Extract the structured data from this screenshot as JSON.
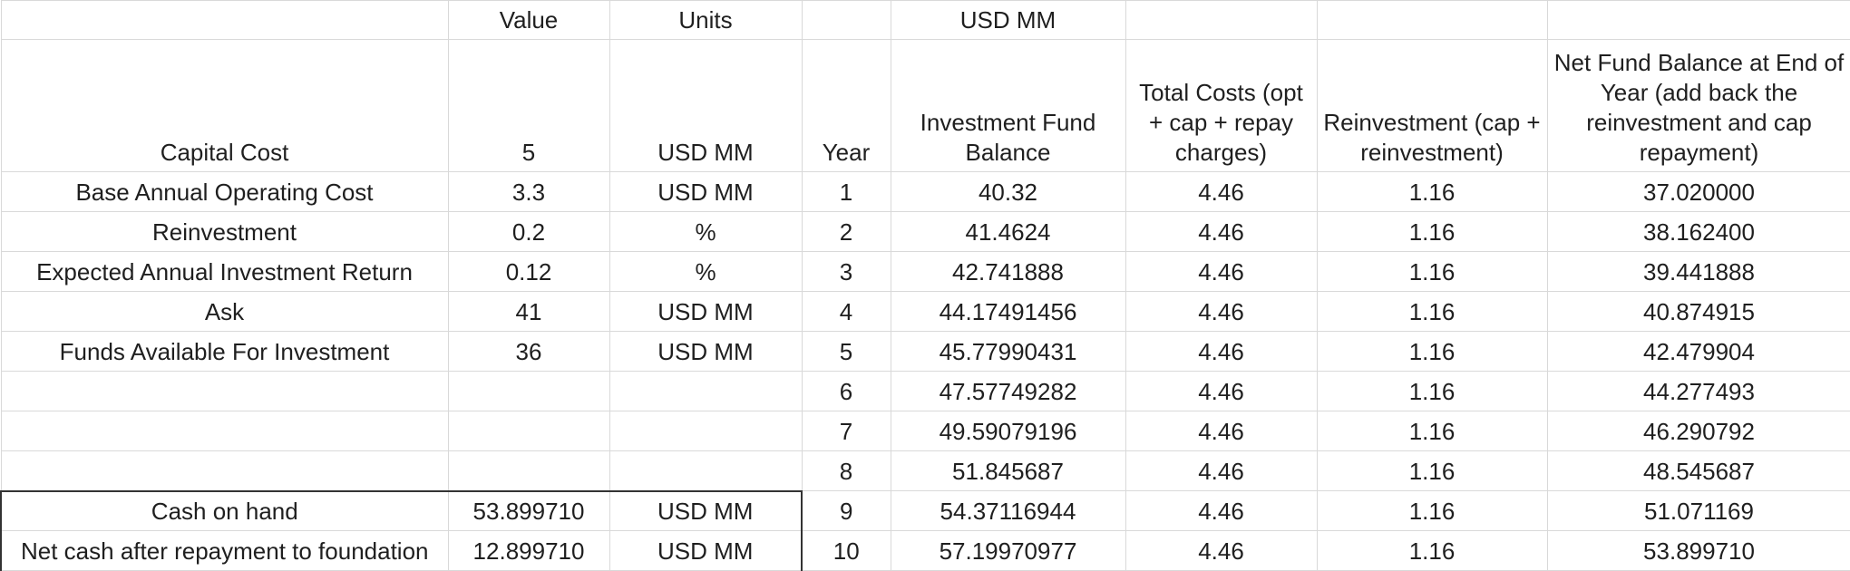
{
  "header": {
    "value": "Value",
    "units": "Units",
    "usd_mm": "USD MM"
  },
  "col_headers": {
    "year": "Year",
    "fund_balance": "Investment Fund Balance",
    "total_costs": "Total Costs (opt + cap + repay charges)",
    "reinvestment": "Reinvestment (cap + reinvestment)",
    "net_balance": "Net Fund Balance at End of Year (add back the reinvestment and cap repayment)"
  },
  "params": [
    {
      "label": "Capital Cost",
      "value": "5",
      "units": "USD MM"
    },
    {
      "label": "Base Annual Operating Cost",
      "value": "3.3",
      "units": "USD MM"
    },
    {
      "label": "Reinvestment",
      "value": "0.2",
      "units": "%"
    },
    {
      "label": "Expected Annual Investment Return",
      "value": "0.12",
      "units": "%"
    },
    {
      "label": "Ask",
      "value": "41",
      "units": "USD MM"
    },
    {
      "label": "Funds Available For Investment",
      "value": "36",
      "units": "USD MM"
    }
  ],
  "summary": [
    {
      "label": "Cash on hand",
      "value": "53.899710",
      "units": "USD MM"
    },
    {
      "label": "Net cash after repayment to foundation",
      "value": "12.899710",
      "units": "USD MM"
    }
  ],
  "years": [
    {
      "year": "1",
      "balance": "40.32",
      "costs": "4.46",
      "reinvest": "1.16",
      "net": "37.020000"
    },
    {
      "year": "2",
      "balance": "41.4624",
      "costs": "4.46",
      "reinvest": "1.16",
      "net": "38.162400"
    },
    {
      "year": "3",
      "balance": "42.741888",
      "costs": "4.46",
      "reinvest": "1.16",
      "net": "39.441888"
    },
    {
      "year": "4",
      "balance": "44.17491456",
      "costs": "4.46",
      "reinvest": "1.16",
      "net": "40.874915"
    },
    {
      "year": "5",
      "balance": "45.77990431",
      "costs": "4.46",
      "reinvest": "1.16",
      "net": "42.479904"
    },
    {
      "year": "6",
      "balance": "47.57749282",
      "costs": "4.46",
      "reinvest": "1.16",
      "net": "44.277493"
    },
    {
      "year": "7",
      "balance": "49.59079196",
      "costs": "4.46",
      "reinvest": "1.16",
      "net": "46.290792"
    },
    {
      "year": "8",
      "balance": "51.845687",
      "costs": "4.46",
      "reinvest": "1.16",
      "net": "48.545687"
    },
    {
      "year": "9",
      "balance": "54.37116944",
      "costs": "4.46",
      "reinvest": "1.16",
      "net": "51.071169"
    },
    {
      "year": "10",
      "balance": "57.19970977",
      "costs": "4.46",
      "reinvest": "1.16",
      "net": "53.899710"
    }
  ]
}
